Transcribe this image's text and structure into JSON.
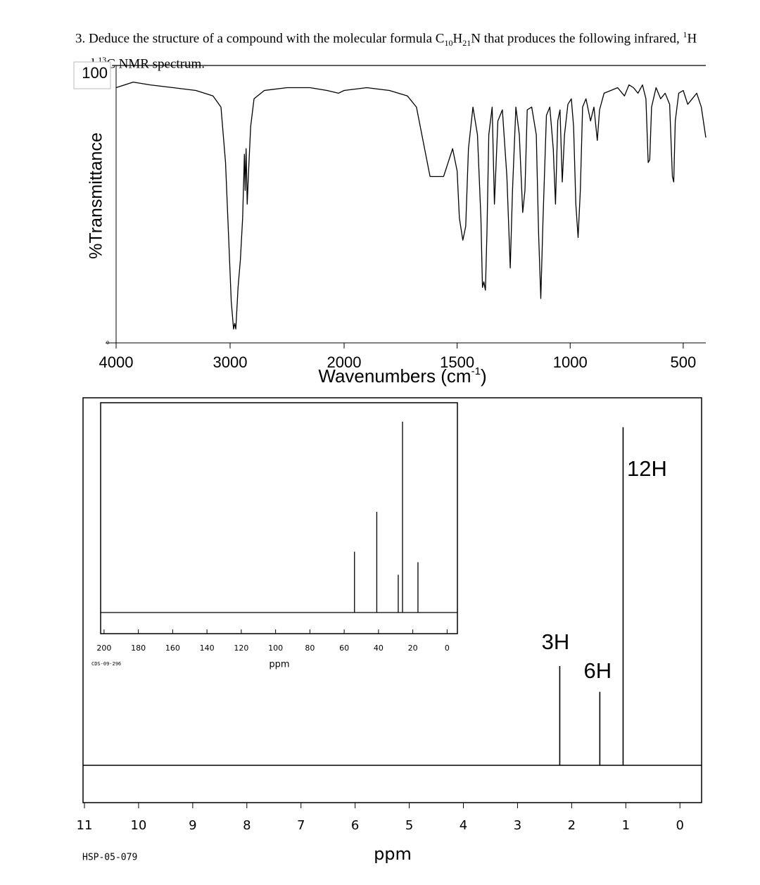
{
  "question": [
    "3. Deduce the structure of a compound with the molecular formula C",
    "10",
    "H",
    "21",
    "N that produces the following infrared, ",
    "1",
    "H and ",
    "13",
    "C NMR spectrum."
  ],
  "chart_data": [
    {
      "type": "line",
      "ylabel": "%Transmittance",
      "xlabel": [
        "Wavenumbers (cm",
        "-1",
        ")"
      ],
      "xlim": [
        4000,
        400
      ],
      "x_scale_break": 2000,
      "xticks": [
        4000,
        3000,
        2000,
        1500,
        1000,
        500
      ],
      "ylim": [
        0,
        100
      ],
      "yticks": [
        0,
        100
      ],
      "color": "#000000",
      "x": [
        4000,
        3850,
        3700,
        3500,
        3300,
        3150,
        3080,
        3040,
        3010,
        2990,
        2970,
        2960,
        2950,
        2930,
        2910,
        2890,
        2875,
        2868,
        2860,
        2850,
        2840,
        2820,
        2790,
        2700,
        2500,
        2300,
        2150,
        2050,
        2000,
        1900,
        1800,
        1720,
        1680,
        1620,
        1560,
        1520,
        1500,
        1490,
        1475,
        1462,
        1450,
        1430,
        1410,
        1395,
        1388,
        1382,
        1375,
        1368,
        1360,
        1345,
        1335,
        1320,
        1300,
        1280,
        1265,
        1255,
        1240,
        1225,
        1210,
        1200,
        1190,
        1170,
        1150,
        1140,
        1130,
        1120,
        1105,
        1090,
        1075,
        1065,
        1055,
        1045,
        1035,
        1025,
        1010,
        995,
        985,
        975,
        965,
        955,
        945,
        930,
        910,
        895,
        880,
        870,
        850,
        820,
        790,
        760,
        740,
        720,
        700,
        680,
        665,
        655,
        648,
        640,
        620,
        600,
        580,
        560,
        548,
        542,
        535,
        520,
        500,
        480,
        460,
        440,
        420,
        400
      ],
      "values": [
        92,
        94,
        93,
        92,
        91,
        89,
        85,
        65,
        35,
        15,
        5,
        7,
        5,
        20,
        30,
        45,
        68,
        55,
        70,
        50,
        60,
        78,
        88,
        91,
        92,
        92,
        91,
        90,
        91,
        92,
        91,
        89,
        85,
        60,
        60,
        70,
        62,
        45,
        37,
        42,
        70,
        85,
        75,
        45,
        20,
        22,
        19,
        40,
        75,
        85,
        50,
        80,
        84,
        60,
        27,
        55,
        85,
        75,
        47,
        55,
        84,
        85,
        75,
        40,
        16,
        45,
        82,
        85,
        70,
        50,
        80,
        84,
        58,
        75,
        86,
        88,
        78,
        50,
        38,
        55,
        85,
        88,
        80,
        85,
        73,
        84,
        90,
        91,
        92,
        89,
        93,
        92,
        90,
        93,
        88,
        65,
        66,
        85,
        92,
        88,
        90,
        86,
        60,
        58,
        80,
        90,
        91,
        86,
        88,
        90,
        85,
        74
      ]
    },
    {
      "type": "stick",
      "xlabel": "ppm",
      "code": "CDS-09-296",
      "xlim": [
        202,
        -6
      ],
      "xticks": [
        200,
        180,
        160,
        140,
        120,
        100,
        80,
        60,
        40,
        20,
        0
      ],
      "ylim": [
        0,
        100
      ],
      "color": "#000000",
      "x": [
        54,
        41,
        28.5,
        26,
        17
      ],
      "values": [
        29,
        48,
        18,
        91,
        24
      ]
    },
    {
      "type": "stick",
      "xlabel": "ppm",
      "code": "HSP-05-079",
      "xlim": [
        11,
        -0.4
      ],
      "xticks": [
        11,
        10,
        9,
        8,
        7,
        6,
        5,
        4,
        3,
        2,
        1,
        0
      ],
      "ylim": [
        0,
        100
      ],
      "color": "#000000",
      "label_color": "#1f6fb0",
      "x": [
        2.22,
        1.48,
        1.05
      ],
      "values": [
        27,
        20,
        92
      ],
      "integrations": [
        "3H",
        "6H",
        "12H"
      ]
    }
  ]
}
